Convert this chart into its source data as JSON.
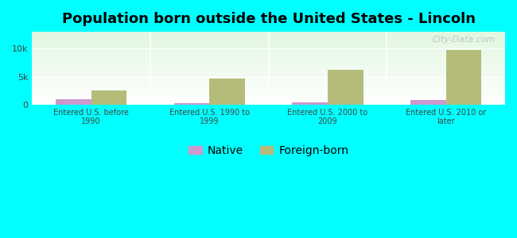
{
  "title": "Population born outside the United States - Lincoln",
  "categories": [
    "Entered U.S. before\n1990",
    "Entered U.S. 1990 to\n1999",
    "Entered U.S. 2000 to\n2009",
    "Entered U.S. 2010 or\nlater"
  ],
  "native_values": [
    1000,
    300,
    350,
    900
  ],
  "foreign_values": [
    2500,
    4700,
    6200,
    9800
  ],
  "native_color": "#cc99cc",
  "foreign_color": "#b5bc7a",
  "background_color": "#00ffff",
  "ylim": [
    0,
    13000
  ],
  "yticks": [
    0,
    5000,
    10000
  ],
  "ytick_labels": [
    "0",
    "5k",
    "10k"
  ],
  "bar_width": 0.3,
  "watermark": "City-Data.com",
  "title_fontsize": 13,
  "tick_fontsize": 8,
  "legend_fontsize": 10
}
